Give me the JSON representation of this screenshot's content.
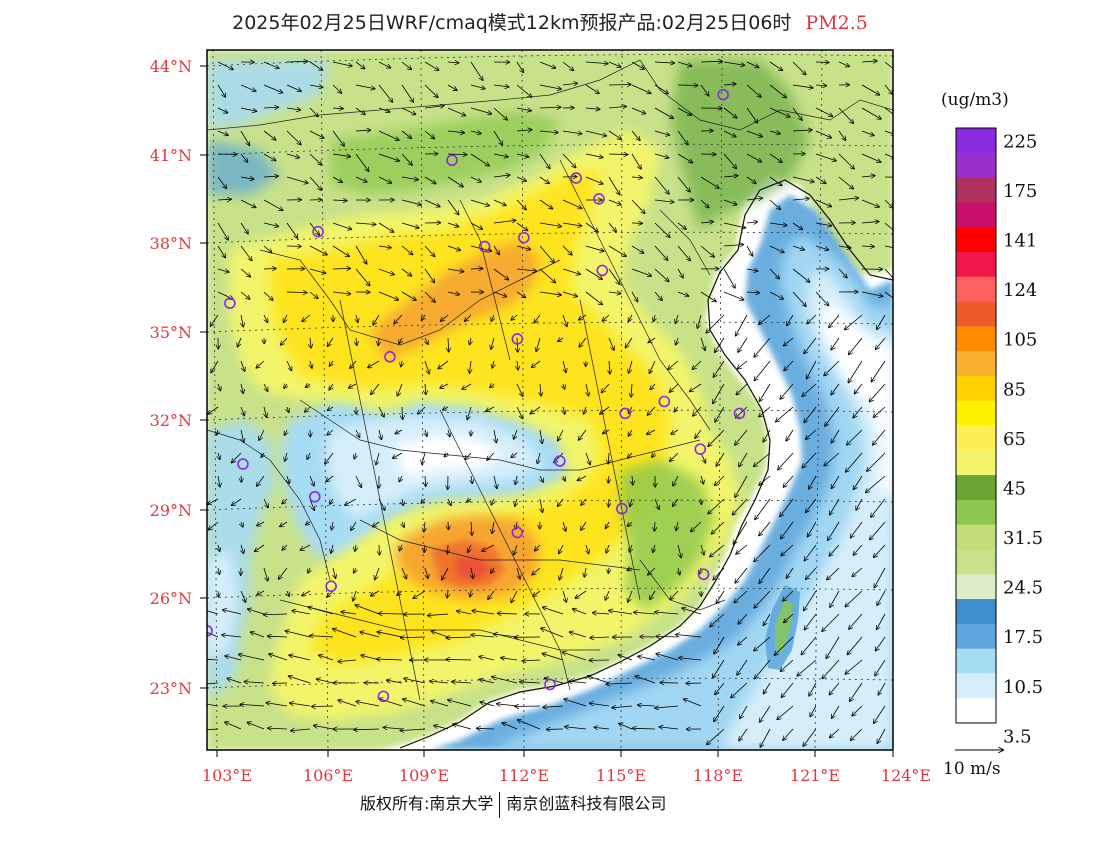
{
  "header": {
    "title": "2025年02月25日WRF/cmaq模式12km预报产品:02月25日06时",
    "pollutant": "PM2.5"
  },
  "map": {
    "lat_labels": [
      "44°N",
      "41°N",
      "38°N",
      "35°N",
      "32°N",
      "29°N",
      "26°N",
      "23°N"
    ],
    "lon_labels": [
      "103°E",
      "106°E",
      "109°E",
      "112°E",
      "115°E",
      "118°E",
      "121°E",
      "124°E"
    ],
    "lat_values": [
      44,
      41,
      38,
      35,
      32,
      29,
      26,
      23
    ],
    "lon_values": [
      103,
      106,
      109,
      112,
      115,
      118,
      121,
      124
    ],
    "extent": {
      "lon_min": 103,
      "lon_max": 124,
      "lat_min": 21,
      "lat_max": 44.5
    },
    "colors": {
      "sea": "#ffffff",
      "pale_blue": "#d5eefa",
      "light_blue": "#a7dcf5",
      "mid_blue": "#5aa6dc",
      "dark_blue": "#3a8fcf",
      "light_green": "#c8e28a",
      "green": "#8cc84e",
      "dark_green": "#5fa43a",
      "yellow_green": "#eef06a",
      "yellow": "#ffe41a",
      "orange": "#f7a531",
      "dark_orange": "#ef6a2b",
      "red_orange": "#e64c3c"
    },
    "stations": [
      {
        "lon": 118.8,
        "lat": 43.0
      },
      {
        "lon": 110.5,
        "lat": 40.8
      },
      {
        "lon": 114.3,
        "lat": 40.2
      },
      {
        "lon": 115.0,
        "lat": 39.5
      },
      {
        "lon": 106.4,
        "lat": 38.4
      },
      {
        "lon": 111.5,
        "lat": 37.9
      },
      {
        "lon": 112.7,
        "lat": 38.2
      },
      {
        "lon": 115.1,
        "lat": 37.1
      },
      {
        "lon": 103.7,
        "lat": 36.0
      },
      {
        "lon": 112.5,
        "lat": 34.8
      },
      {
        "lon": 108.6,
        "lat": 34.2
      },
      {
        "lon": 117.0,
        "lat": 32.7
      },
      {
        "lon": 115.8,
        "lat": 32.3
      },
      {
        "lon": 119.3,
        "lat": 32.3
      },
      {
        "lon": 118.1,
        "lat": 31.1
      },
      {
        "lon": 104.1,
        "lat": 30.6
      },
      {
        "lon": 113.8,
        "lat": 30.7
      },
      {
        "lon": 106.3,
        "lat": 29.5
      },
      {
        "lon": 115.7,
        "lat": 29.1
      },
      {
        "lon": 112.5,
        "lat": 28.3
      },
      {
        "lon": 106.8,
        "lat": 26.5
      },
      {
        "lon": 118.2,
        "lat": 26.9
      },
      {
        "lon": 103.0,
        "lat": 25.0
      },
      {
        "lon": 108.4,
        "lat": 22.8
      },
      {
        "lon": 113.5,
        "lat": 23.2
      }
    ]
  },
  "legend": {
    "unit": "(ug/m3)",
    "colors": [
      "#8a2be2",
      "#9932cc",
      "#b03060",
      "#c8106a",
      "#ff0000",
      "#f0184a",
      "#ff6060",
      "#ef5a2b",
      "#ff8c00",
      "#f8b02e",
      "#ffd000",
      "#fff200",
      "#ffee55",
      "#f2f56a",
      "#6aa534",
      "#8cc84e",
      "#c2de7a",
      "#c8e28a",
      "#dceec8",
      "#3f8fce",
      "#5ea6dc",
      "#a7dcf5",
      "#d5eefa",
      "#ffffff"
    ],
    "labels": [
      {
        "text": "225",
        "slot": 1
      },
      {
        "text": "175",
        "slot": 3
      },
      {
        "text": "141",
        "slot": 5
      },
      {
        "text": "124",
        "slot": 7
      },
      {
        "text": "105",
        "slot": 9
      },
      {
        "text": "85",
        "slot": 11
      },
      {
        "text": "65",
        "slot": 13
      },
      {
        "text": "45",
        "slot": 15
      },
      {
        "text": "31.5",
        "slot": 17
      },
      {
        "text": "24.5",
        "slot": 19
      },
      {
        "text": "17.5",
        "slot": 21
      },
      {
        "text": "10.5",
        "slot": 23
      },
      {
        "text": "3.5",
        "slot": 25
      }
    ],
    "wind_reference": "10 m/s"
  },
  "footer": {
    "copyright": "版权所有:南京大学",
    "company": "南京创蓝科技有限公司"
  }
}
